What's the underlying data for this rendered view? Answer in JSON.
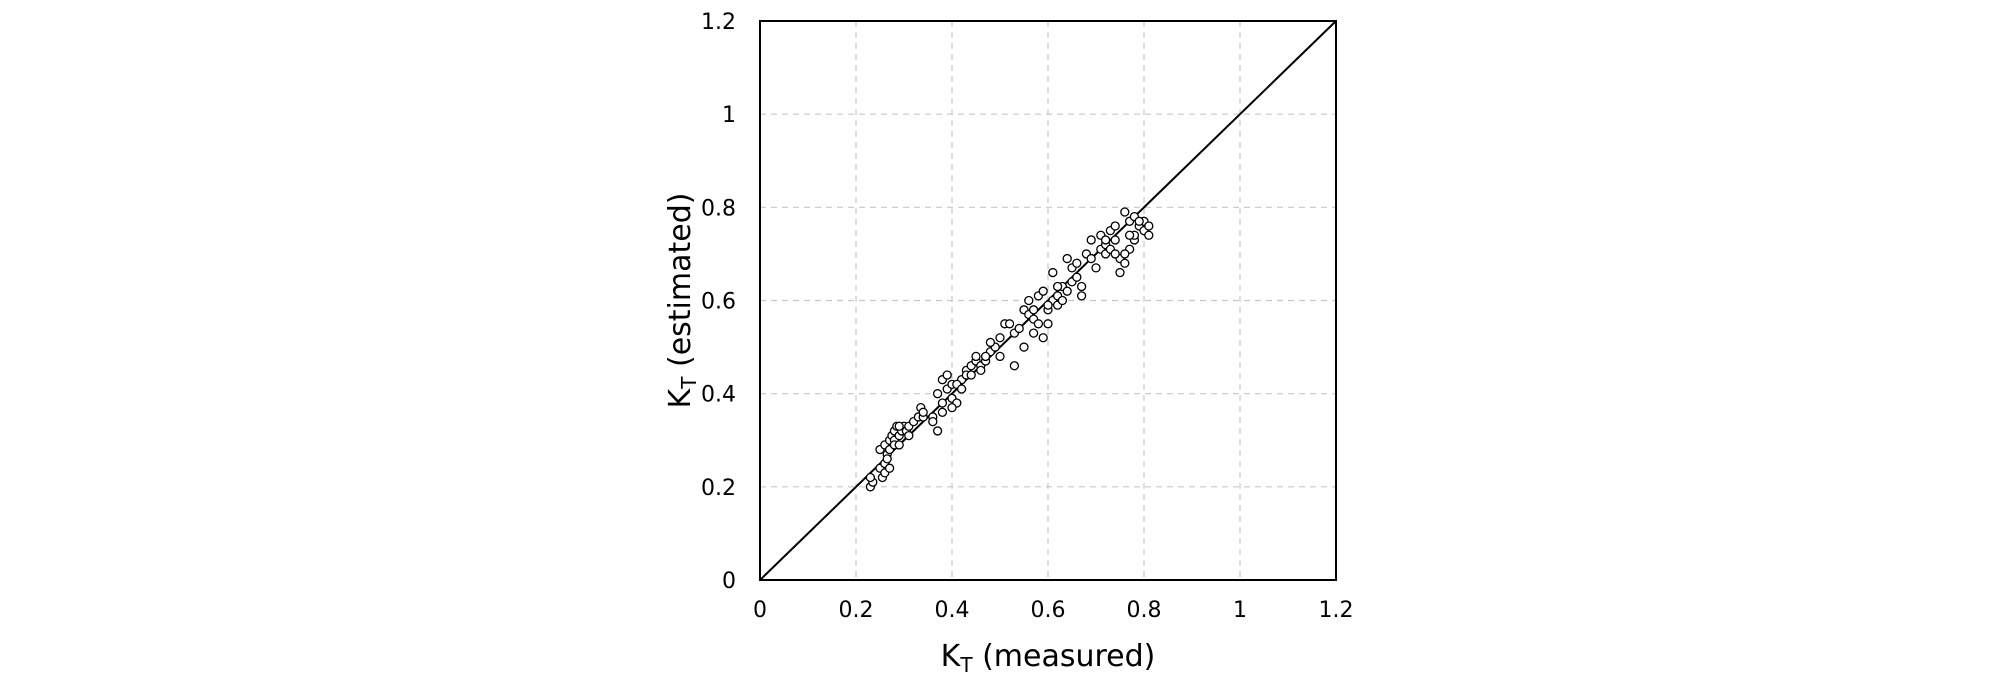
{
  "chart_data": {
    "type": "scatter",
    "title": "",
    "xlabel": {
      "main": "K",
      "sub": "T",
      "rest": " (measured)"
    },
    "ylabel": {
      "main": "K",
      "sub": "T",
      "rest": " (estimated)"
    },
    "xlim": [
      0,
      1.2
    ],
    "ylim": [
      0,
      1.2
    ],
    "xticks": [
      0,
      0.2,
      0.4,
      0.6,
      0.8,
      1,
      1.2
    ],
    "yticks": [
      0,
      0.2,
      0.4,
      0.6,
      0.8,
      1,
      1.2
    ],
    "xtick_labels": [
      "0",
      "0.2",
      "0.4",
      "0.6",
      "0.8",
      "1",
      "1.2"
    ],
    "ytick_labels": [
      "0",
      "0.2",
      "0.4",
      "0.6",
      "0.8",
      "1",
      "1.2"
    ],
    "grid": true,
    "grid_style": "dashed",
    "marker": "open-circle",
    "reference_line": {
      "label": "",
      "x": [
        0,
        1.2
      ],
      "y": [
        0,
        1.2
      ]
    },
    "points": [
      [
        0.23,
        0.2
      ],
      [
        0.235,
        0.21
      ],
      [
        0.23,
        0.22
      ],
      [
        0.25,
        0.24
      ],
      [
        0.255,
        0.22
      ],
      [
        0.26,
        0.25
      ],
      [
        0.26,
        0.23
      ],
      [
        0.25,
        0.28
      ],
      [
        0.26,
        0.29
      ],
      [
        0.265,
        0.27
      ],
      [
        0.27,
        0.3
      ],
      [
        0.27,
        0.28
      ],
      [
        0.275,
        0.31
      ],
      [
        0.28,
        0.32
      ],
      [
        0.28,
        0.3
      ],
      [
        0.285,
        0.33
      ],
      [
        0.29,
        0.31
      ],
      [
        0.295,
        0.32
      ],
      [
        0.3,
        0.33
      ],
      [
        0.305,
        0.32
      ],
      [
        0.27,
        0.24
      ],
      [
        0.265,
        0.26
      ],
      [
        0.28,
        0.29
      ],
      [
        0.29,
        0.33
      ],
      [
        0.31,
        0.33
      ],
      [
        0.32,
        0.34
      ],
      [
        0.33,
        0.35
      ],
      [
        0.335,
        0.37
      ],
      [
        0.34,
        0.35
      ],
      [
        0.36,
        0.35
      ],
      [
        0.37,
        0.32
      ],
      [
        0.38,
        0.38
      ],
      [
        0.37,
        0.4
      ],
      [
        0.38,
        0.43
      ],
      [
        0.39,
        0.41
      ],
      [
        0.39,
        0.44
      ],
      [
        0.4,
        0.42
      ],
      [
        0.4,
        0.39
      ],
      [
        0.41,
        0.38
      ],
      [
        0.4,
        0.37
      ],
      [
        0.42,
        0.43
      ],
      [
        0.43,
        0.45
      ],
      [
        0.43,
        0.44
      ],
      [
        0.44,
        0.46
      ],
      [
        0.45,
        0.47
      ],
      [
        0.45,
        0.48
      ],
      [
        0.46,
        0.46
      ],
      [
        0.47,
        0.47
      ],
      [
        0.48,
        0.49
      ],
      [
        0.49,
        0.5
      ],
      [
        0.5,
        0.48
      ],
      [
        0.48,
        0.51
      ],
      [
        0.5,
        0.52
      ],
      [
        0.51,
        0.55
      ],
      [
        0.52,
        0.55
      ],
      [
        0.53,
        0.53
      ],
      [
        0.53,
        0.46
      ],
      [
        0.55,
        0.58
      ],
      [
        0.55,
        0.5
      ],
      [
        0.56,
        0.57
      ],
      [
        0.56,
        0.6
      ],
      [
        0.57,
        0.56
      ],
      [
        0.57,
        0.53
      ],
      [
        0.58,
        0.55
      ],
      [
        0.58,
        0.61
      ],
      [
        0.59,
        0.62
      ],
      [
        0.59,
        0.52
      ],
      [
        0.6,
        0.58
      ],
      [
        0.6,
        0.55
      ],
      [
        0.61,
        0.6
      ],
      [
        0.61,
        0.66
      ],
      [
        0.62,
        0.61
      ],
      [
        0.62,
        0.59
      ],
      [
        0.63,
        0.63
      ],
      [
        0.63,
        0.6
      ],
      [
        0.64,
        0.62
      ],
      [
        0.64,
        0.69
      ],
      [
        0.65,
        0.64
      ],
      [
        0.65,
        0.67
      ],
      [
        0.66,
        0.68
      ],
      [
        0.67,
        0.61
      ],
      [
        0.67,
        0.63
      ],
      [
        0.68,
        0.7
      ],
      [
        0.69,
        0.73
      ],
      [
        0.7,
        0.67
      ],
      [
        0.71,
        0.71
      ],
      [
        0.71,
        0.74
      ],
      [
        0.72,
        0.72
      ],
      [
        0.72,
        0.7
      ],
      [
        0.73,
        0.75
      ],
      [
        0.73,
        0.71
      ],
      [
        0.74,
        0.73
      ],
      [
        0.74,
        0.76
      ],
      [
        0.75,
        0.69
      ],
      [
        0.76,
        0.68
      ],
      [
        0.76,
        0.79
      ],
      [
        0.77,
        0.71
      ],
      [
        0.77,
        0.77
      ],
      [
        0.78,
        0.73
      ],
      [
        0.78,
        0.74
      ],
      [
        0.78,
        0.78
      ],
      [
        0.79,
        0.76
      ],
      [
        0.8,
        0.77
      ],
      [
        0.8,
        0.75
      ],
      [
        0.81,
        0.76
      ],
      [
        0.81,
        0.74
      ],
      [
        0.77,
        0.74
      ],
      [
        0.76,
        0.7
      ],
      [
        0.75,
        0.66
      ],
      [
        0.79,
        0.77
      ],
      [
        0.44,
        0.44
      ],
      [
        0.46,
        0.45
      ],
      [
        0.47,
        0.48
      ],
      [
        0.38,
        0.36
      ],
      [
        0.36,
        0.34
      ],
      [
        0.34,
        0.36
      ],
      [
        0.31,
        0.31
      ],
      [
        0.29,
        0.29
      ],
      [
        0.41,
        0.42
      ],
      [
        0.42,
        0.41
      ],
      [
        0.54,
        0.54
      ],
      [
        0.57,
        0.58
      ],
      [
        0.6,
        0.59
      ],
      [
        0.62,
        0.63
      ],
      [
        0.66,
        0.65
      ],
      [
        0.69,
        0.69
      ],
      [
        0.72,
        0.73
      ],
      [
        0.74,
        0.7
      ]
    ]
  }
}
